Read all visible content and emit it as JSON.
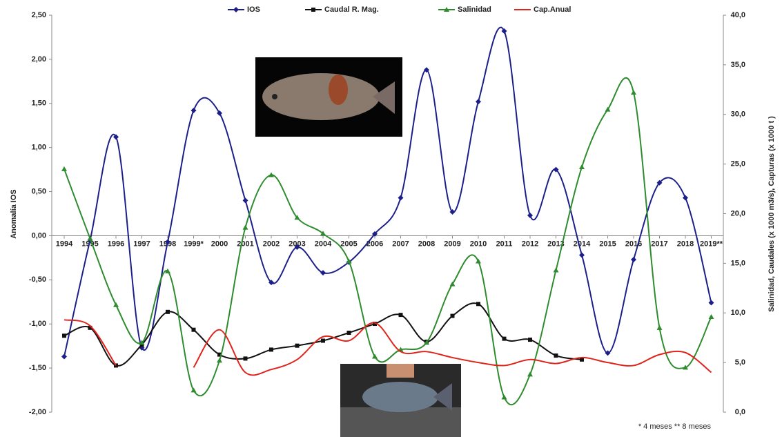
{
  "chart_data": {
    "type": "line",
    "categories": [
      "1994",
      "1995",
      "1996",
      "1997",
      "1998",
      "1999*",
      "2000",
      "2001",
      "2002",
      "2003",
      "2004",
      "2005",
      "2006",
      "2007",
      "2008",
      "2009",
      "2010",
      "2011",
      "2012",
      "2013",
      "2014",
      "2015",
      "2016",
      "2017",
      "2018",
      "2019**"
    ],
    "y_label": "Anomalía IOS",
    "y2_label": "Salinidad, Caudales (x 1000 m3/s), Capturas (x 1000 t )",
    "footnote": "* 4 meses  ** 8 meses",
    "ylim": [
      -2,
      2.5
    ],
    "yticks": [
      {
        "value": -2,
        "label": "-2,00"
      },
      {
        "value": -1.5,
        "label": "-1,50"
      },
      {
        "value": -1,
        "label": "-1,00"
      },
      {
        "value": -0.5,
        "label": "-0,50"
      },
      {
        "value": 0,
        "label": "0,00"
      },
      {
        "value": 0.5,
        "label": "0,50"
      },
      {
        "value": 1,
        "label": "1,00"
      },
      {
        "value": 1.5,
        "label": "1,50"
      },
      {
        "value": 2,
        "label": "2,00"
      },
      {
        "value": 2.5,
        "label": "2,50"
      }
    ],
    "y2lim": [
      0,
      40
    ],
    "y2ticks": [
      {
        "value": 0,
        "label": "0,0"
      },
      {
        "value": 5,
        "label": "5,0"
      },
      {
        "value": 10,
        "label": "10,0"
      },
      {
        "value": 15,
        "label": "15,0"
      },
      {
        "value": 20,
        "label": "20,0"
      },
      {
        "value": 25,
        "label": "25,0"
      },
      {
        "value": 30,
        "label": "30,0"
      },
      {
        "value": 35,
        "label": "35,0"
      },
      {
        "value": 40,
        "label": "40,0"
      }
    ],
    "series": [
      {
        "name": "IOS",
        "color": "#1c1f8a",
        "marker": "diamond",
        "values": [
          -1.37,
          -0.05,
          1.12,
          -1.27,
          -0.07,
          1.42,
          1.39,
          0.4,
          -0.53,
          -0.13,
          -0.42,
          -0.3,
          0.02,
          0.43,
          1.88,
          0.27,
          1.52,
          2.32,
          0.23,
          0.75,
          -0.22,
          -1.33,
          -0.27,
          0.6,
          0.43,
          -0.76
        ]
      },
      {
        "name": "Caudal  R. Mag.",
        "color": "#111111",
        "marker": "square",
        "axis": "y2",
        "values": [
          7.7,
          8.5,
          4.7,
          6.8,
          10.1,
          8.3,
          5.8,
          5.4,
          6.3,
          6.7,
          7.2,
          8.0,
          8.9,
          9.8,
          7.1,
          9.7,
          10.9,
          7.4,
          7.3,
          5.7,
          5.3,
          null,
          null,
          null,
          null,
          null
        ]
      },
      {
        "name": "Salinidad",
        "color": "#2e8b2e",
        "marker": "triangle",
        "axis": "y2",
        "values": [
          24.5,
          17.5,
          10.8,
          7.0,
          14.2,
          2.2,
          5.2,
          18.6,
          23.9,
          19.6,
          18.0,
          15.2,
          5.6,
          6.3,
          7.0,
          12.9,
          15.2,
          1.5,
          3.8,
          14.3,
          24.7,
          30.5,
          32.2,
          8.5,
          4.5,
          9.6
        ]
      },
      {
        "name": "Cap.Anual",
        "color": "#e0241b",
        "marker": "none",
        "axis": "y2",
        "values": [
          9.3,
          8.7,
          4.7,
          null,
          null,
          4.5,
          8.3,
          4.0,
          4.3,
          5.3,
          7.6,
          7.2,
          9.0,
          6.1,
          6.1,
          5.5,
          5.0,
          4.7,
          5.3,
          4.9,
          5.5,
          5.0,
          4.7,
          5.8,
          6.0,
          4.0
        ]
      }
    ]
  }
}
